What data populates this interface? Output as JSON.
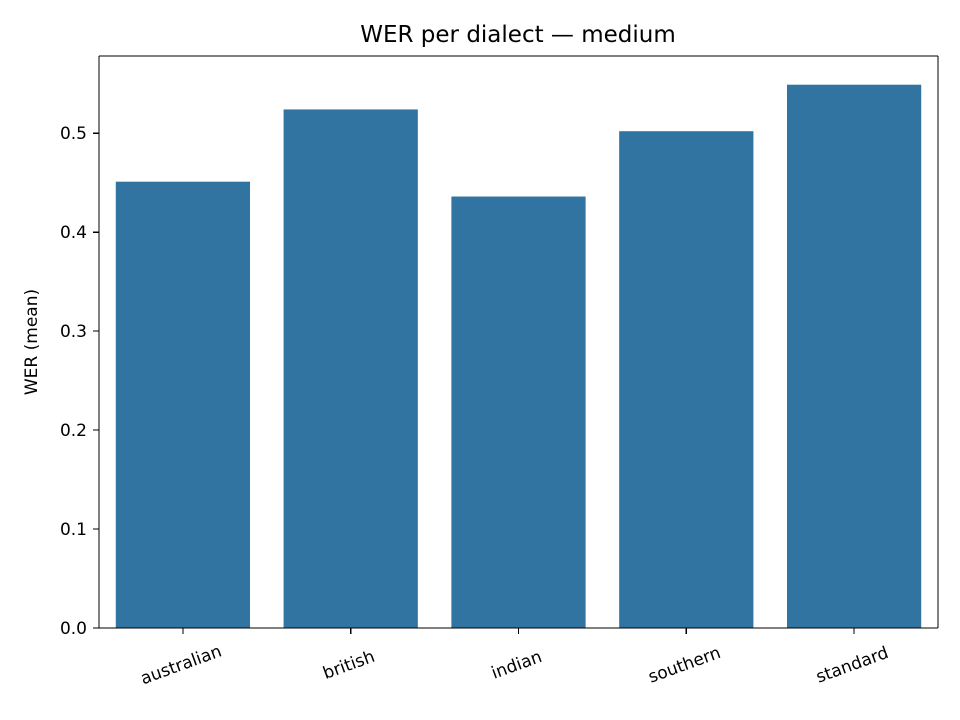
{
  "chart_data": {
    "type": "bar",
    "title": "WER per dialect — medium",
    "xlabel": "",
    "ylabel": "WER (mean)",
    "categories": [
      "australian",
      "british",
      "indian",
      "southern",
      "standard"
    ],
    "values": [
      0.451,
      0.524,
      0.436,
      0.502,
      0.549
    ],
    "ylim": [
      0,
      0.578
    ],
    "yticks": [
      0.0,
      0.1,
      0.2,
      0.3,
      0.4,
      0.5
    ],
    "ytick_labels": [
      "0.0",
      "0.1",
      "0.2",
      "0.3",
      "0.4",
      "0.5"
    ],
    "bar_color": "#3274a1",
    "grid": false,
    "legend": "none",
    "xtick_rotation_deg": -20
  }
}
